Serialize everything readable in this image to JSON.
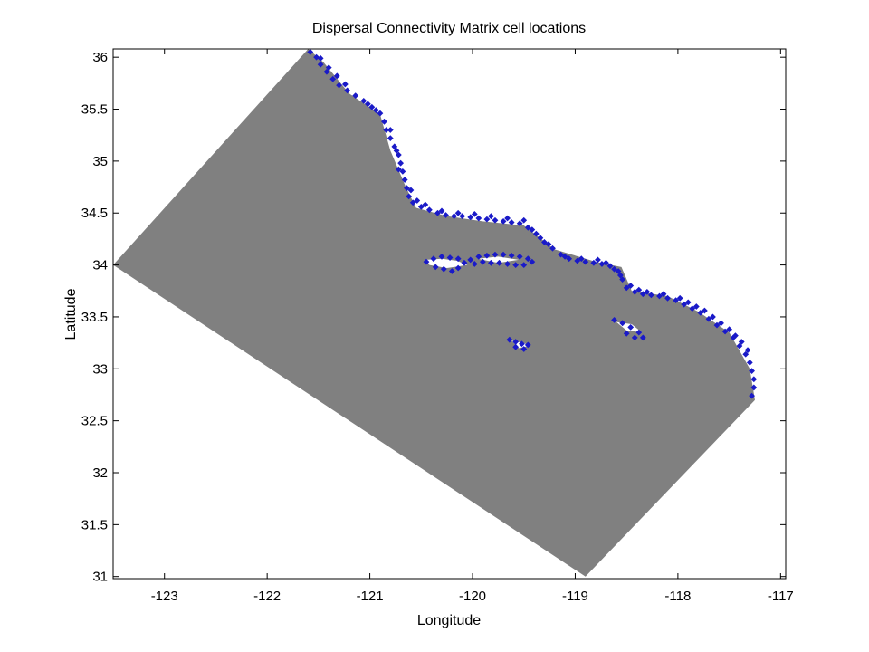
{
  "chart_data": {
    "type": "scatter",
    "title": "Dispersal Connectivity Matrix cell locations",
    "xlabel": "Longitude",
    "ylabel": "Latitude",
    "xlim": [
      -123.5,
      -116.95
    ],
    "ylim": [
      30.98,
      36.08
    ],
    "xticks": [
      -123,
      -122,
      -121,
      -120,
      -119,
      -118,
      -117
    ],
    "xtick_labels": [
      "-123",
      "-122",
      "-121",
      "-120",
      "-119",
      "-118",
      "-117"
    ],
    "yticks": [
      31,
      31.5,
      32,
      32.5,
      33,
      33.5,
      34,
      34.5,
      35,
      35.5,
      36
    ],
    "ytick_labels": [
      "31",
      "31.5",
      "32",
      "32.5",
      "33",
      "33.5",
      "34",
      "34.5",
      "35",
      "35.5",
      "36"
    ],
    "grid": false,
    "colors": {
      "domain": "#808080",
      "cells": "#1a1ac8",
      "background": "#ffffff"
    },
    "domain_polygon": [
      [
        -123.5,
        34.0
      ],
      [
        -121.6,
        36.08
      ],
      [
        -121.45,
        35.95
      ],
      [
        -121.2,
        35.65
      ],
      [
        -120.9,
        35.45
      ],
      [
        -120.8,
        35.1
      ],
      [
        -120.65,
        34.75
      ],
      [
        -120.55,
        34.55
      ],
      [
        -120.25,
        34.47
      ],
      [
        -119.9,
        34.42
      ],
      [
        -119.5,
        34.38
      ],
      [
        -119.2,
        34.15
      ],
      [
        -118.8,
        34.03
      ],
      [
        -118.55,
        33.98
      ],
      [
        -118.45,
        33.75
      ],
      [
        -118.1,
        33.7
      ],
      [
        -117.8,
        33.55
      ],
      [
        -117.5,
        33.35
      ],
      [
        -117.3,
        33.0
      ],
      [
        -117.25,
        32.7
      ],
      [
        -118.9,
        31.0
      ],
      [
        -123.5,
        34.0
      ]
    ],
    "islands": [
      [
        [
          -120.45,
          34.05
        ],
        [
          -120.3,
          34.06
        ],
        [
          -120.15,
          34.04
        ],
        [
          -120.05,
          34.0
        ],
        [
          -120.25,
          33.97
        ],
        [
          -120.42,
          34.0
        ]
      ],
      [
        [
          -119.95,
          34.06
        ],
        [
          -119.75,
          34.08
        ],
        [
          -119.55,
          34.05
        ],
        [
          -119.75,
          34.02
        ]
      ],
      [
        [
          -119.62,
          33.27
        ],
        [
          -119.5,
          33.25
        ],
        [
          -119.45,
          33.22
        ],
        [
          -119.55,
          33.2
        ]
      ],
      [
        [
          -118.6,
          33.45
        ],
        [
          -118.45,
          33.43
        ],
        [
          -118.35,
          33.35
        ],
        [
          -118.5,
          33.37
        ]
      ]
    ],
    "series": [
      {
        "marker": "diamond",
        "points": [
          [
            -121.58,
            36.05
          ],
          [
            -121.52,
            36.0
          ],
          [
            -121.48,
            35.93
          ],
          [
            -121.42,
            35.86
          ],
          [
            -121.36,
            35.79
          ],
          [
            -121.3,
            35.73
          ],
          [
            -121.22,
            35.68
          ],
          [
            -121.14,
            35.63
          ],
          [
            -121.06,
            35.58
          ],
          [
            -120.98,
            35.52
          ],
          [
            -120.9,
            35.46
          ],
          [
            -120.86,
            35.38
          ],
          [
            -120.84,
            35.3
          ],
          [
            -120.8,
            35.22
          ],
          [
            -120.76,
            35.14
          ],
          [
            -120.72,
            35.06
          ],
          [
            -120.7,
            34.98
          ],
          [
            -120.68,
            34.9
          ],
          [
            -120.66,
            34.82
          ],
          [
            -120.64,
            34.74
          ],
          [
            -120.62,
            34.66
          ],
          [
            -120.58,
            34.6
          ],
          [
            -120.5,
            34.56
          ],
          [
            -120.42,
            34.53
          ],
          [
            -120.34,
            34.5
          ],
          [
            -120.26,
            34.48
          ],
          [
            -120.18,
            34.47
          ],
          [
            -120.1,
            34.47
          ],
          [
            -120.02,
            34.46
          ],
          [
            -119.94,
            34.45
          ],
          [
            -119.86,
            34.44
          ],
          [
            -119.78,
            34.43
          ],
          [
            -119.7,
            34.42
          ],
          [
            -119.62,
            34.41
          ],
          [
            -119.54,
            34.4
          ],
          [
            -119.46,
            34.36
          ],
          [
            -119.38,
            34.3
          ],
          [
            -119.3,
            34.22
          ],
          [
            -119.22,
            34.16
          ],
          [
            -119.14,
            34.1
          ],
          [
            -119.06,
            34.06
          ],
          [
            -118.98,
            34.04
          ],
          [
            -118.9,
            34.03
          ],
          [
            -118.82,
            34.02
          ],
          [
            -118.74,
            34.01
          ],
          [
            -118.66,
            33.99
          ],
          [
            -118.58,
            33.94
          ],
          [
            -118.54,
            33.86
          ],
          [
            -118.5,
            33.78
          ],
          [
            -118.42,
            33.74
          ],
          [
            -118.34,
            33.72
          ],
          [
            -118.26,
            33.71
          ],
          [
            -118.18,
            33.7
          ],
          [
            -118.1,
            33.68
          ],
          [
            -118.02,
            33.66
          ],
          [
            -117.94,
            33.62
          ],
          [
            -117.86,
            33.58
          ],
          [
            -117.78,
            33.54
          ],
          [
            -117.7,
            33.48
          ],
          [
            -117.62,
            33.42
          ],
          [
            -117.54,
            33.36
          ],
          [
            -117.46,
            33.3
          ],
          [
            -117.4,
            33.22
          ],
          [
            -117.34,
            33.14
          ],
          [
            -117.3,
            33.06
          ],
          [
            -117.28,
            32.98
          ],
          [
            -117.26,
            32.9
          ],
          [
            -117.26,
            32.82
          ],
          [
            -117.28,
            32.74
          ],
          [
            -121.48,
            35.99
          ],
          [
            -121.4,
            35.9
          ],
          [
            -121.32,
            35.82
          ],
          [
            -121.24,
            35.74
          ],
          [
            -121.02,
            35.55
          ],
          [
            -120.94,
            35.49
          ],
          [
            -120.8,
            35.3
          ],
          [
            -120.74,
            35.1
          ],
          [
            -120.72,
            34.92
          ],
          [
            -120.6,
            34.72
          ],
          [
            -120.54,
            34.62
          ],
          [
            -120.46,
            34.58
          ],
          [
            -120.3,
            34.52
          ],
          [
            -120.14,
            34.5
          ],
          [
            -119.98,
            34.49
          ],
          [
            -119.82,
            34.47
          ],
          [
            -119.66,
            34.45
          ],
          [
            -119.5,
            34.43
          ],
          [
            -119.42,
            34.34
          ],
          [
            -119.34,
            34.26
          ],
          [
            -119.26,
            34.2
          ],
          [
            -119.1,
            34.08
          ],
          [
            -118.94,
            34.06
          ],
          [
            -118.78,
            34.05
          ],
          [
            -118.7,
            34.02
          ],
          [
            -118.62,
            33.96
          ],
          [
            -118.56,
            33.9
          ],
          [
            -118.46,
            33.8
          ],
          [
            -118.38,
            33.76
          ],
          [
            -118.3,
            33.74
          ],
          [
            -118.14,
            33.72
          ],
          [
            -117.98,
            33.68
          ],
          [
            -117.9,
            33.64
          ],
          [
            -117.82,
            33.6
          ],
          [
            -117.74,
            33.56
          ],
          [
            -117.66,
            33.5
          ],
          [
            -117.58,
            33.44
          ],
          [
            -117.5,
            33.38
          ],
          [
            -117.44,
            33.32
          ],
          [
            -117.38,
            33.26
          ],
          [
            -117.32,
            33.18
          ],
          [
            -120.45,
            34.03
          ],
          [
            -120.38,
            34.06
          ],
          [
            -120.3,
            34.08
          ],
          [
            -120.22,
            34.07
          ],
          [
            -120.14,
            34.06
          ],
          [
            -120.08,
            34.02
          ],
          [
            -120.14,
            33.97
          ],
          [
            -120.2,
            33.94
          ],
          [
            -120.28,
            33.96
          ],
          [
            -120.36,
            33.98
          ],
          [
            -120.02,
            34.05
          ],
          [
            -119.94,
            34.08
          ],
          [
            -119.86,
            34.09
          ],
          [
            -119.78,
            34.1
          ],
          [
            -119.7,
            34.1
          ],
          [
            -119.62,
            34.09
          ],
          [
            -119.54,
            34.08
          ],
          [
            -119.46,
            34.06
          ],
          [
            -119.42,
            34.03
          ],
          [
            -119.5,
            34.0
          ],
          [
            -119.58,
            34.0
          ],
          [
            -119.66,
            34.01
          ],
          [
            -119.74,
            34.02
          ],
          [
            -119.82,
            34.02
          ],
          [
            -119.9,
            34.03
          ],
          [
            -119.98,
            34.01
          ],
          [
            -119.64,
            33.28
          ],
          [
            -119.58,
            33.26
          ],
          [
            -119.52,
            33.24
          ],
          [
            -119.46,
            33.23
          ],
          [
            -119.5,
            33.19
          ],
          [
            -119.58,
            33.21
          ],
          [
            -118.62,
            33.47
          ],
          [
            -118.54,
            33.44
          ],
          [
            -118.46,
            33.4
          ],
          [
            -118.38,
            33.35
          ],
          [
            -118.34,
            33.3
          ],
          [
            -118.42,
            33.3
          ],
          [
            -118.5,
            33.34
          ]
        ]
      }
    ]
  }
}
